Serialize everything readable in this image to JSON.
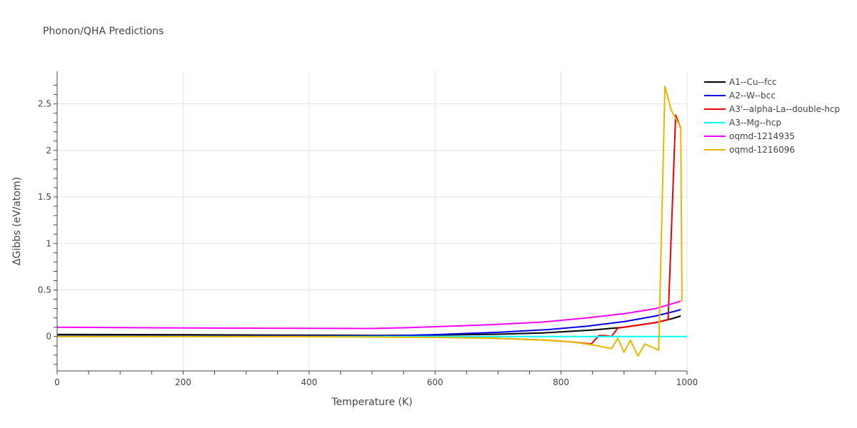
{
  "chart_data": {
    "type": "line",
    "title": "Phonon/QHA Predictions",
    "xlabel": "Temperature (K)",
    "ylabel": "ΔGibbs (eV/atom)",
    "xlim": [
      0,
      1000
    ],
    "ylim": [
      -0.37,
      2.85
    ],
    "x_ticks": [
      0,
      200,
      400,
      600,
      800,
      1000
    ],
    "y_ticks": [
      0,
      0.5,
      1,
      1.5,
      2,
      2.5
    ],
    "x_tick_labels": [
      "0",
      "200",
      "400",
      "600",
      "800",
      "1000"
    ],
    "y_tick_labels": [
      "0",
      "0.5",
      "1",
      "1.5",
      "2",
      "2.5"
    ],
    "grid": true,
    "legend": "right",
    "series": [
      {
        "name": "A1--Cu--fcc",
        "color": "#000000",
        "points": [
          [
            0,
            0.022
          ],
          [
            200,
            0.019
          ],
          [
            400,
            0.014
          ],
          [
            500,
            0.012
          ],
          [
            600,
            0.015
          ],
          [
            700,
            0.025
          ],
          [
            770,
            0.038
          ],
          [
            800,
            0.05
          ],
          [
            850,
            0.07
          ],
          [
            900,
            0.1
          ],
          [
            950,
            0.15
          ],
          [
            975,
            0.19
          ],
          [
            990,
            0.22
          ]
        ]
      },
      {
        "name": "A2--W--bcc",
        "color": "#0000ee",
        "points": [
          [
            0,
            0.005
          ],
          [
            300,
            0.004
          ],
          [
            500,
            0.006
          ],
          [
            550,
            0.012
          ],
          [
            600,
            0.02
          ],
          [
            700,
            0.045
          ],
          [
            780,
            0.075
          ],
          [
            840,
            0.11
          ],
          [
            900,
            0.16
          ],
          [
            950,
            0.22
          ],
          [
            980,
            0.27
          ],
          [
            990,
            0.29
          ]
        ]
      },
      {
        "name": "A3'--alpha-La--double-hcp",
        "color": "#ee0000",
        "points": [
          [
            0,
            0.002
          ],
          [
            400,
            0.001
          ],
          [
            600,
            -0.005
          ],
          [
            700,
            -0.02
          ],
          [
            780,
            -0.04
          ],
          [
            820,
            -0.06
          ],
          [
            848,
            -0.08
          ],
          [
            860,
            0.01
          ],
          [
            870,
            0.01
          ],
          [
            880,
            0.0
          ],
          [
            890,
            0.09
          ],
          [
            920,
            0.12
          ],
          [
            950,
            0.15
          ],
          [
            970,
            0.18
          ],
          [
            982,
            2.38
          ],
          [
            990,
            2.24
          ]
        ]
      },
      {
        "name": "A3--Mg--hcp",
        "color": "#00ffff",
        "points": [
          [
            0,
            0.0
          ],
          [
            1000,
            0.0
          ]
        ]
      },
      {
        "name": "oqmd-1214935",
        "color": "#ff00ff",
        "points": [
          [
            0,
            0.1
          ],
          [
            200,
            0.092
          ],
          [
            400,
            0.088
          ],
          [
            500,
            0.086
          ],
          [
            560,
            0.095
          ],
          [
            600,
            0.105
          ],
          [
            700,
            0.13
          ],
          [
            770,
            0.155
          ],
          [
            840,
            0.2
          ],
          [
            900,
            0.245
          ],
          [
            950,
            0.3
          ],
          [
            980,
            0.36
          ],
          [
            990,
            0.38
          ]
        ]
      },
      {
        "name": "oqmd-1216096",
        "color": "#e6b800",
        "points": [
          [
            0,
            0.0
          ],
          [
            400,
            -0.002
          ],
          [
            600,
            -0.01
          ],
          [
            700,
            -0.02
          ],
          [
            780,
            -0.04
          ],
          [
            820,
            -0.06
          ],
          [
            850,
            -0.09
          ],
          [
            880,
            -0.13
          ],
          [
            890,
            -0.02
          ],
          [
            900,
            -0.17
          ],
          [
            910,
            -0.04
          ],
          [
            922,
            -0.21
          ],
          [
            933,
            -0.08
          ],
          [
            955,
            -0.145
          ],
          [
            965,
            2.69
          ],
          [
            975,
            2.43
          ],
          [
            990,
            2.25
          ],
          [
            992,
            0.38
          ]
        ]
      }
    ]
  }
}
